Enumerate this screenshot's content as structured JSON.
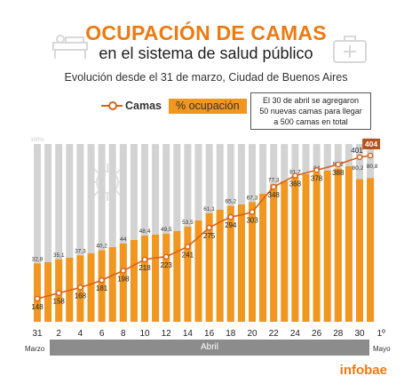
{
  "header": {
    "title_line1": "OCUPACIÓN DE CAMAS",
    "title_line2": "en el sistema de salud público",
    "subtitle": "Evolución desde el 31 de marzo, Ciudad de Buenos Aires"
  },
  "legend": {
    "camas_label": "Camas",
    "ocupacion_label": "% ocupación"
  },
  "annotation": {
    "line1": "El 30 de abril se agregaron",
    "line2": "50 nuevas camas para llegar",
    "line3": "a 500 camas en total"
  },
  "months": {
    "marzo": "Marzo",
    "abril": "Abril",
    "mayo": "Mayo"
  },
  "brand": "infobae",
  "colors": {
    "accent": "#ee7a12",
    "bar": "#f1961e",
    "bar_background": "#d3d3d3",
    "line": "#d9621a",
    "highlight_box": "#b5531c"
  },
  "chart_data": {
    "type": "bar",
    "x_tick_labels": [
      "31",
      "2",
      "4",
      "6",
      "8",
      "10",
      "12",
      "14",
      "16",
      "18",
      "20",
      "22",
      "24",
      "26",
      "28",
      "30",
      "1º"
    ],
    "background_bar_label_first": "100%",
    "background_bar_label_last": "100%",
    "ylim": [
      0,
      100
    ],
    "series": [
      {
        "name": "% ocupación",
        "values": [
          32.8,
          33.5,
          35.1,
          36.0,
          37.3,
          38.5,
          40.2,
          42.0,
          44.0,
          46.0,
          48.4,
          49.0,
          49.5,
          51.0,
          53.5,
          57.0,
          61.1,
          63.0,
          65.2,
          66.0,
          67.3,
          72.0,
          77.3,
          79.0,
          81.7,
          83.0,
          84.0,
          85.0,
          86.2,
          87.5,
          80.2,
          80.8
        ],
        "labels": {
          "0": "32,8",
          "2": "35,1",
          "4": "37,3",
          "6": "40,2",
          "8": "44",
          "10": "48,4",
          "12": "49,5",
          "14": "53,5",
          "16": "61,1",
          "18": "65,2",
          "20": "67,3",
          "22": "77,3",
          "24": "81,7",
          "26": "84",
          "28": "86,2",
          "30": "80,2",
          "31": "80,8"
        }
      },
      {
        "name": "Camas",
        "values": [
          148,
          153,
          158,
          163,
          168,
          174,
          181,
          190,
          198,
          208,
          218,
          221,
          223,
          232,
          241,
          258,
          275,
          285,
          294,
          298,
          303,
          326,
          348,
          358,
          368,
          373,
          378,
          383,
          388,
          395,
          401,
          404
        ],
        "labels": {
          "0": "148",
          "2": "158",
          "4": "168",
          "6": "181",
          "8": "198",
          "10": "218",
          "12": "223",
          "14": "241",
          "16": "275",
          "18": "294",
          "20": "303",
          "22": "348",
          "24": "368",
          "26": "378",
          "28": "388",
          "30": "401",
          "31": "404"
        }
      }
    ]
  }
}
